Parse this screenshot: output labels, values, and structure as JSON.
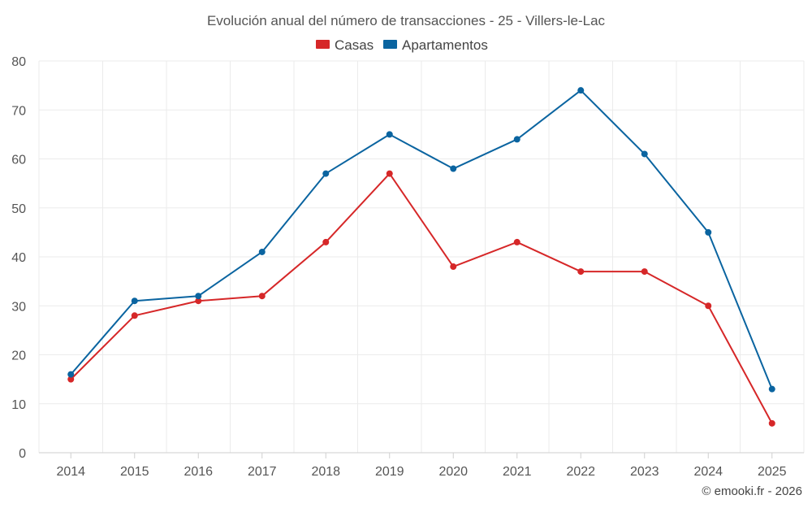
{
  "chart_data": {
    "type": "line",
    "title": "Evolución anual del número de transacciones - 25 - Villers-le-Lac",
    "categories": [
      "2014",
      "2015",
      "2016",
      "2017",
      "2018",
      "2019",
      "2020",
      "2021",
      "2022",
      "2023",
      "2024",
      "2025"
    ],
    "series": [
      {
        "name": "Casas",
        "color": "#d62728",
        "values": [
          15,
          28,
          31,
          32,
          43,
          57,
          38,
          43,
          37,
          37,
          30,
          6
        ]
      },
      {
        "name": "Apartamentos",
        "color": "#0a64a0",
        "values": [
          16,
          31,
          32,
          41,
          57,
          65,
          58,
          64,
          74,
          61,
          45,
          13
        ]
      }
    ],
    "ylim": [
      0,
      80
    ],
    "yticks": [
      0,
      10,
      20,
      30,
      40,
      50,
      60,
      70,
      80
    ],
    "xlabel": "",
    "ylabel": "",
    "grid": true,
    "legend_position": "top-center"
  },
  "credit": "© emooki.fr - 2026"
}
